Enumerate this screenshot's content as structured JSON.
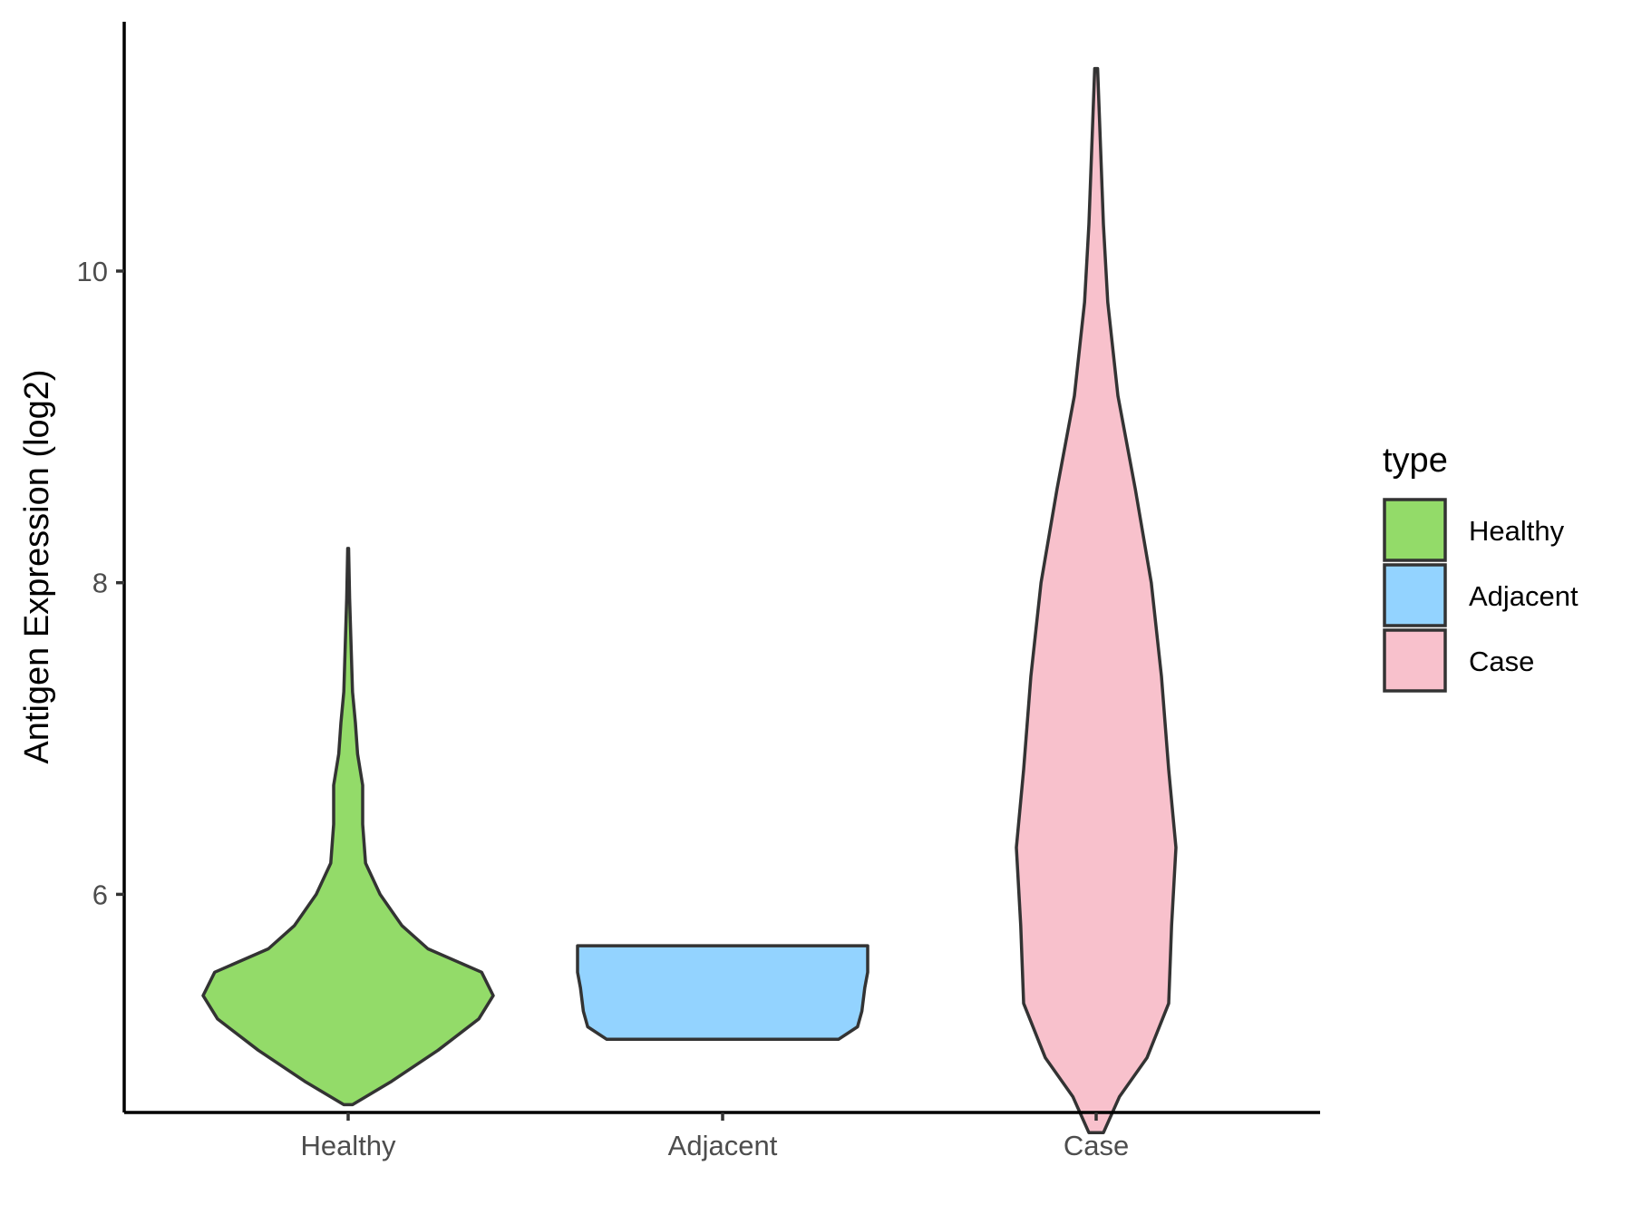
{
  "chart_data": {
    "type": "violin",
    "title": "",
    "xlabel": "",
    "ylabel": "Antigen Expression (log2)",
    "ylim": [
      4.6,
      11.6
    ],
    "y_ticks": [
      6,
      8,
      10
    ],
    "categories": [
      "Healthy",
      "Adjacent",
      "Case"
    ],
    "legend": {
      "title": "type",
      "position": "right",
      "entries": [
        "Healthy",
        "Adjacent",
        "Case"
      ]
    },
    "series": [
      {
        "category": "Healthy",
        "color": "#93DB69",
        "min": 4.65,
        "max": 8.22,
        "density_profile": [
          [
            4.65,
            0.03
          ],
          [
            4.8,
            0.3
          ],
          [
            5.0,
            0.62
          ],
          [
            5.2,
            0.9
          ],
          [
            5.35,
            1.0
          ],
          [
            5.5,
            0.92
          ],
          [
            5.65,
            0.55
          ],
          [
            5.8,
            0.37
          ],
          [
            6.0,
            0.22
          ],
          [
            6.2,
            0.12
          ],
          [
            6.45,
            0.1
          ],
          [
            6.7,
            0.1
          ],
          [
            6.9,
            0.065
          ],
          [
            7.1,
            0.05
          ],
          [
            7.3,
            0.03
          ],
          [
            7.6,
            0.02
          ],
          [
            7.9,
            0.01
          ],
          [
            8.22,
            0.003
          ]
        ]
      },
      {
        "category": "Adjacent",
        "color": "#93D3FF",
        "min": 5.07,
        "max": 5.67,
        "density_profile": [
          [
            5.07,
            0.8
          ],
          [
            5.15,
            0.93
          ],
          [
            5.25,
            0.96
          ],
          [
            5.4,
            0.98
          ],
          [
            5.5,
            1.0
          ],
          [
            5.67,
            1.0
          ]
        ]
      },
      {
        "category": "Case",
        "color": "#F8C1CC",
        "min": 4.47,
        "max": 11.3,
        "density_profile": [
          [
            4.47,
            0.05
          ],
          [
            4.7,
            0.16
          ],
          [
            4.95,
            0.35
          ],
          [
            5.3,
            0.5
          ],
          [
            5.8,
            0.52
          ],
          [
            6.3,
            0.55
          ],
          [
            6.8,
            0.5
          ],
          [
            7.4,
            0.45
          ],
          [
            8.0,
            0.38
          ],
          [
            8.6,
            0.27
          ],
          [
            9.2,
            0.15
          ],
          [
            9.8,
            0.08
          ],
          [
            10.3,
            0.05
          ],
          [
            10.8,
            0.03
          ],
          [
            11.3,
            0.01
          ]
        ]
      }
    ]
  }
}
